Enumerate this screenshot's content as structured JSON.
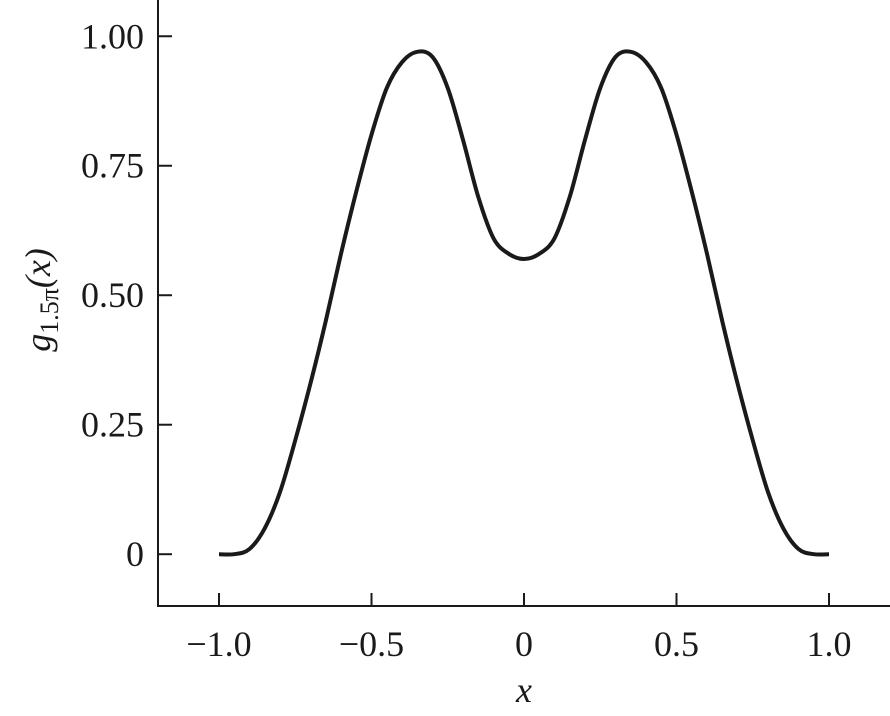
{
  "chart_data": {
    "type": "line",
    "ylabel_main": "g",
    "ylabel_sub": "1.5π",
    "ylabel_tail": "(x)",
    "xlabel": "x",
    "x": [
      -1,
      -0.95,
      -0.9,
      -0.85,
      -0.8,
      -0.75,
      -0.7,
      -0.65,
      -0.6,
      -0.55,
      -0.5,
      -0.45,
      -0.4,
      -0.35,
      -0.3,
      -0.25,
      -0.2,
      -0.15,
      -0.1,
      -0.05,
      0,
      0.05,
      0.1,
      0.15,
      0.2,
      0.25,
      0.3,
      0.35,
      0.4,
      0.45,
      0.5,
      0.55,
      0.6,
      0.65,
      0.7,
      0.75,
      0.8,
      0.85,
      0.9,
      0.95,
      1
    ],
    "series": [
      {
        "color": "#1a1a1a",
        "values": [
          0,
          0,
          0.01,
          0.05,
          0.12,
          0.22,
          0.33,
          0.45,
          0.58,
          0.7,
          0.81,
          0.9,
          0.95,
          0.97,
          0.96,
          0.9,
          0.8,
          0.69,
          0.61,
          0.58,
          0.57,
          0.58,
          0.61,
          0.69,
          0.8,
          0.9,
          0.96,
          0.97,
          0.95,
          0.9,
          0.81,
          0.7,
          0.58,
          0.45,
          0.33,
          0.22,
          0.12,
          0.05,
          0.01,
          0,
          0
        ]
      }
    ],
    "xlim": [
      -1.2,
      1.2
    ],
    "ylim": [
      -0.1,
      1.07
    ],
    "xticks": [
      {
        "value": -1,
        "label": "−1.0"
      },
      {
        "value": -0.5,
        "label": "−0.5"
      },
      0,
      0.5,
      {
        "value": 1,
        "label": "1.0"
      }
    ],
    "yticks": [
      0,
      0.25,
      {
        "value": 0.5,
        "label": "0.50"
      },
      {
        "value": 0.75,
        "label": "0.75"
      },
      {
        "value": 1,
        "label": "1.00"
      }
    ]
  }
}
